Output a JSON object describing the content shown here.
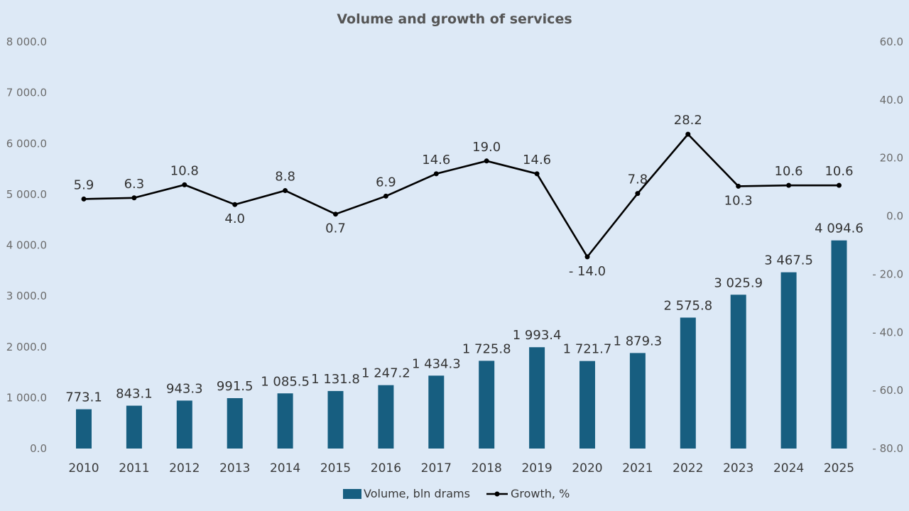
{
  "chart_data": {
    "type": "bar+line",
    "title": "Volume and growth of services",
    "categories": [
      "2010",
      "2011",
      "2012",
      "2013",
      "2014",
      "2015",
      "2016",
      "2017",
      "2018",
      "2019",
      "2020",
      "2021",
      "2022",
      "2023",
      "2024",
      "2025"
    ],
    "series": [
      {
        "name": "Volume, bln drams",
        "type": "bar",
        "axis": "left",
        "color": "#175e80",
        "values": [
          773.1,
          843.1,
          943.3,
          991.5,
          1085.5,
          1131.8,
          1247.2,
          1434.3,
          1725.8,
          1993.4,
          1721.7,
          1879.3,
          2575.8,
          3025.9,
          3467.5,
          4094.6
        ],
        "labels": [
          "773.1",
          "843.1",
          "943.3",
          "991.5",
          "1 085.5",
          "1 131.8",
          "1 247.2",
          "1 434.3",
          "1 725.8",
          "1 993.4",
          "1 721.7",
          "1 879.3",
          "2 575.8",
          "3 025.9",
          "3 467.5",
          "4 094.6"
        ]
      },
      {
        "name": "Growth, %",
        "type": "line",
        "axis": "right",
        "color": "#000000",
        "values": [
          5.9,
          6.3,
          10.8,
          4.0,
          8.8,
          0.7,
          6.9,
          14.6,
          19.0,
          14.6,
          -14.0,
          7.8,
          28.2,
          10.3,
          10.6,
          10.6
        ],
        "labels": [
          "5.9",
          "6.3",
          "10.8",
          "4.0",
          "8.8",
          "0.7",
          "6.9",
          "14.6",
          "19.0",
          "14.6",
          "- 14.0",
          "7.8",
          "28.2",
          "10.3",
          "10.6",
          "10.6"
        ]
      }
    ],
    "highlight_color": "#ff0000",
    "label_color": "#333333",
    "y_left": {
      "range": [
        0,
        8000
      ],
      "ticks": [
        0,
        1000,
        2000,
        3000,
        4000,
        5000,
        6000,
        7000,
        8000
      ],
      "tick_labels": [
        "0.0",
        "1 000.0",
        "2 000.0",
        "3 000.0",
        "4 000.0",
        "5 000.0",
        "6 000.0",
        "7 000.0",
        "8 000.0"
      ]
    },
    "y_right": {
      "range": [
        -80,
        60
      ],
      "ticks": [
        -80,
        -60,
        -40,
        -20,
        0,
        20,
        40,
        60
      ],
      "tick_labels": [
        "- 80.0",
        "- 60.0",
        "- 40.0",
        "- 20.0",
        "0.0",
        "20.0",
        "40.0",
        "60.0"
      ]
    },
    "grid": false,
    "legend_position": "bottom"
  }
}
